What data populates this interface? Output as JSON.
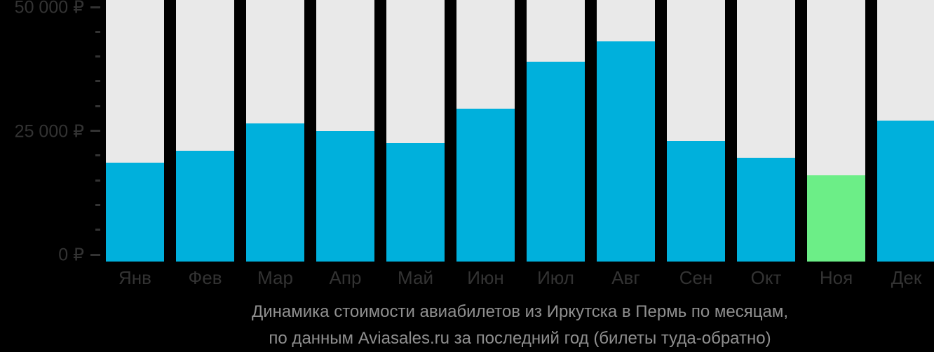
{
  "title": {
    "line1": "Динамика стоимости авиабилетов из Иркутска в Пермь по месяцам,",
    "line2": "по данным Aviasales.ru за последний год (билеты туда-обратно)"
  },
  "chart_data": {
    "type": "bar",
    "title": "Динамика стоимости авиабилетов из Иркутска в Пермь по месяцам, по данным Aviasales.ru за последний год (билеты туда-обратно)",
    "categories": [
      "Янв",
      "Фев",
      "Мар",
      "Апр",
      "Май",
      "Июн",
      "Июл",
      "Авг",
      "Сен",
      "Окт",
      "Ноя",
      "Дек"
    ],
    "values": [
      18500,
      21000,
      26500,
      25000,
      22500,
      29500,
      39000,
      43000,
      23000,
      19500,
      16000,
      27000
    ],
    "unit": "₽",
    "xlabel": "",
    "ylabel": "",
    "ylim": [
      0,
      50000
    ],
    "grid": false,
    "legend": "none",
    "highlight_index": 10,
    "highlight_meaning": "minimum-price-month",
    "y_axis": {
      "major_ticks": [
        {
          "value": 50000,
          "label": "50 000 ₽"
        },
        {
          "value": 25000,
          "label": "25 000 ₽"
        },
        {
          "value": 0,
          "label": "0 ₽"
        }
      ],
      "minor_tick_values": [
        45000,
        40000,
        35000,
        30000,
        20000,
        15000,
        10000,
        5000
      ]
    },
    "colors": {
      "bar": "#00b0dc",
      "highlight": "#6cee87",
      "track": "#e9e9e9",
      "axis_text": "#333333",
      "title_text": "#8f8f8f",
      "background": "#000000"
    }
  }
}
